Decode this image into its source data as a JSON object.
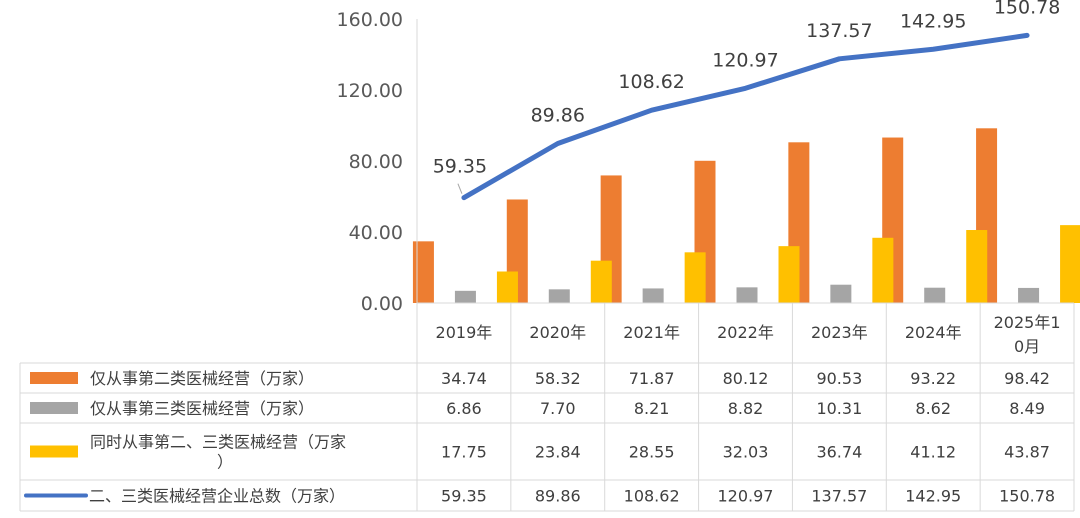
{
  "chart_data": {
    "type": "bar",
    "categories": [
      "2019年",
      "2020年",
      "2021年",
      "2022年",
      "2023年",
      "2024年",
      "2025年10月"
    ],
    "ylim": [
      0,
      160
    ],
    "yticks": [
      "0.00",
      "40.00",
      "80.00",
      "120.00",
      "160.00"
    ],
    "grid": false,
    "legend": "table-below",
    "series": [
      {
        "name": "仅从事第二类医械经营（万家）",
        "type": "bar",
        "color": "#ED7D31",
        "values": [
          34.74,
          58.32,
          71.87,
          80.12,
          90.53,
          93.22,
          98.42
        ],
        "labels": [
          "34.74",
          "58.32",
          "71.87",
          "80.12",
          "90.53",
          "93.22",
          "98.42"
        ]
      },
      {
        "name": "仅从事第三类医械经营（万家）",
        "type": "bar",
        "color": "#A5A5A5",
        "values": [
          6.86,
          7.7,
          8.21,
          8.82,
          10.31,
          8.62,
          8.49
        ],
        "labels": [
          "6.86",
          "7.70",
          "8.21",
          "8.82",
          "10.31",
          "8.62",
          "8.49"
        ]
      },
      {
        "name": "同时从事第二、三类医械经营（万家）",
        "type": "bar",
        "color": "#FFC000",
        "values": [
          17.75,
          23.84,
          28.55,
          32.03,
          36.74,
          41.12,
          43.87
        ],
        "labels": [
          "17.75",
          "23.84",
          "28.55",
          "32.03",
          "36.74",
          "41.12",
          "43.87"
        ]
      },
      {
        "name": "二、三类医械经营企业总数（万家）",
        "type": "line",
        "color": "#4472C4",
        "values": [
          59.35,
          89.86,
          108.62,
          120.97,
          137.57,
          142.95,
          150.78
        ],
        "labels": [
          "59.35",
          "89.86",
          "108.62",
          "120.97",
          "137.57",
          "142.95",
          "150.78"
        ]
      }
    ]
  }
}
